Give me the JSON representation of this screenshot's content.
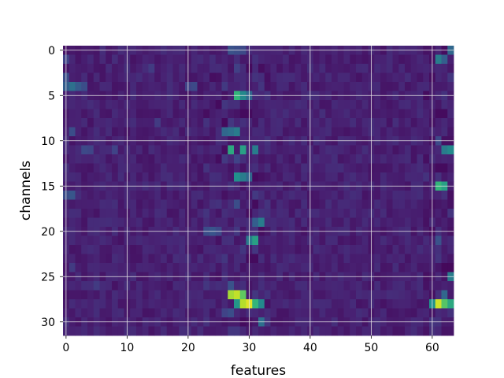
{
  "chart_data": {
    "type": "heatmap",
    "title": "",
    "xlabel": "features",
    "ylabel": "channels",
    "n_cols": 64,
    "n_rows": 32,
    "xlim": [
      -0.5,
      63.5
    ],
    "ylim": [
      31.5,
      -0.5
    ],
    "x_ticks": [
      0,
      10,
      20,
      30,
      40,
      50,
      60
    ],
    "y_ticks": [
      0,
      5,
      10,
      15,
      20,
      25,
      30
    ],
    "colormap": "viridis",
    "grid": true,
    "grid_color": "#e6e6e6",
    "background_level": 0.12,
    "cells": [
      {
        "row": 0,
        "col": 27,
        "v": 0.32
      },
      {
        "row": 0,
        "col": 28,
        "v": 0.3
      },
      {
        "row": 0,
        "col": 29,
        "v": 0.28
      },
      {
        "row": 0,
        "col": 63,
        "v": 0.4
      },
      {
        "row": 1,
        "col": 0,
        "v": 0.25
      },
      {
        "row": 1,
        "col": 61,
        "v": 0.45
      },
      {
        "row": 1,
        "col": 62,
        "v": 0.38
      },
      {
        "row": 2,
        "col": 14,
        "v": 0.22
      },
      {
        "row": 2,
        "col": 28,
        "v": 0.24
      },
      {
        "row": 3,
        "col": 0,
        "v": 0.3
      },
      {
        "row": 3,
        "col": 63,
        "v": 0.2
      },
      {
        "row": 4,
        "col": 0,
        "v": 0.38
      },
      {
        "row": 4,
        "col": 1,
        "v": 0.42
      },
      {
        "row": 4,
        "col": 2,
        "v": 0.36
      },
      {
        "row": 4,
        "col": 3,
        "v": 0.3
      },
      {
        "row": 4,
        "col": 20,
        "v": 0.25
      },
      {
        "row": 4,
        "col": 21,
        "v": 0.28
      },
      {
        "row": 5,
        "col": 28,
        "v": 0.62
      },
      {
        "row": 5,
        "col": 29,
        "v": 0.48
      },
      {
        "row": 5,
        "col": 30,
        "v": 0.4
      },
      {
        "row": 6,
        "col": 26,
        "v": 0.2
      },
      {
        "row": 7,
        "col": 29,
        "v": 0.04
      },
      {
        "row": 7,
        "col": 30,
        "v": 0.04
      },
      {
        "row": 7,
        "col": 61,
        "v": 0.04
      },
      {
        "row": 7,
        "col": 62,
        "v": 0.04
      },
      {
        "row": 8,
        "col": 15,
        "v": 0.22
      },
      {
        "row": 9,
        "col": 1,
        "v": 0.3
      },
      {
        "row": 9,
        "col": 26,
        "v": 0.4
      },
      {
        "row": 9,
        "col": 27,
        "v": 0.42
      },
      {
        "row": 9,
        "col": 28,
        "v": 0.45
      },
      {
        "row": 10,
        "col": 61,
        "v": 0.28
      },
      {
        "row": 11,
        "col": 3,
        "v": 0.28
      },
      {
        "row": 11,
        "col": 4,
        "v": 0.26
      },
      {
        "row": 11,
        "col": 8,
        "v": 0.25
      },
      {
        "row": 11,
        "col": 27,
        "v": 0.58
      },
      {
        "row": 11,
        "col": 29,
        "v": 0.55
      },
      {
        "row": 11,
        "col": 31,
        "v": 0.45
      },
      {
        "row": 11,
        "col": 62,
        "v": 0.45
      },
      {
        "row": 11,
        "col": 63,
        "v": 0.48
      },
      {
        "row": 12,
        "col": 28,
        "v": 0.25
      },
      {
        "row": 13,
        "col": 61,
        "v": 0.04
      },
      {
        "row": 13,
        "col": 62,
        "v": 0.04
      },
      {
        "row": 14,
        "col": 28,
        "v": 0.5
      },
      {
        "row": 14,
        "col": 29,
        "v": 0.45
      },
      {
        "row": 14,
        "col": 30,
        "v": 0.4
      },
      {
        "row": 15,
        "col": 61,
        "v": 0.62
      },
      {
        "row": 15,
        "col": 62,
        "v": 0.55
      },
      {
        "row": 16,
        "col": 0,
        "v": 0.3
      },
      {
        "row": 16,
        "col": 1,
        "v": 0.34
      },
      {
        "row": 17,
        "col": 28,
        "v": 0.3
      },
      {
        "row": 18,
        "col": 30,
        "v": 0.05
      },
      {
        "row": 19,
        "col": 31,
        "v": 0.38
      },
      {
        "row": 19,
        "col": 32,
        "v": 0.45
      },
      {
        "row": 20,
        "col": 23,
        "v": 0.3
      },
      {
        "row": 20,
        "col": 24,
        "v": 0.33
      },
      {
        "row": 20,
        "col": 25,
        "v": 0.28
      },
      {
        "row": 21,
        "col": 30,
        "v": 0.45
      },
      {
        "row": 21,
        "col": 31,
        "v": 0.55
      },
      {
        "row": 21,
        "col": 61,
        "v": 0.32
      },
      {
        "row": 22,
        "col": 29,
        "v": 0.2
      },
      {
        "row": 23,
        "col": 30,
        "v": 0.04
      },
      {
        "row": 23,
        "col": 31,
        "v": 0.04
      },
      {
        "row": 24,
        "col": 1,
        "v": 0.22
      },
      {
        "row": 24,
        "col": 62,
        "v": 0.03
      },
      {
        "row": 24,
        "col": 63,
        "v": 0.03
      },
      {
        "row": 25,
        "col": 63,
        "v": 0.45
      },
      {
        "row": 26,
        "col": 27,
        "v": 0.32
      },
      {
        "row": 26,
        "col": 5,
        "v": 0.22
      },
      {
        "row": 27,
        "col": 27,
        "v": 0.85
      },
      {
        "row": 27,
        "col": 28,
        "v": 0.9
      },
      {
        "row": 27,
        "col": 29,
        "v": 0.72
      },
      {
        "row": 27,
        "col": 62,
        "v": 0.4
      },
      {
        "row": 28,
        "col": 28,
        "v": 0.52
      },
      {
        "row": 28,
        "col": 29,
        "v": 0.88
      },
      {
        "row": 28,
        "col": 30,
        "v": 0.95
      },
      {
        "row": 28,
        "col": 31,
        "v": 0.62
      },
      {
        "row": 28,
        "col": 32,
        "v": 0.48
      },
      {
        "row": 28,
        "col": 60,
        "v": 0.5
      },
      {
        "row": 28,
        "col": 61,
        "v": 0.92
      },
      {
        "row": 28,
        "col": 62,
        "v": 0.7
      },
      {
        "row": 28,
        "col": 63,
        "v": 0.58
      },
      {
        "row": 29,
        "col": 26,
        "v": 0.25
      },
      {
        "row": 29,
        "col": 27,
        "v": 0.3
      },
      {
        "row": 30,
        "col": 32,
        "v": 0.42
      },
      {
        "row": 30,
        "col": 29,
        "v": 0.04
      },
      {
        "row": 31,
        "col": 28,
        "v": 0.2
      }
    ]
  }
}
